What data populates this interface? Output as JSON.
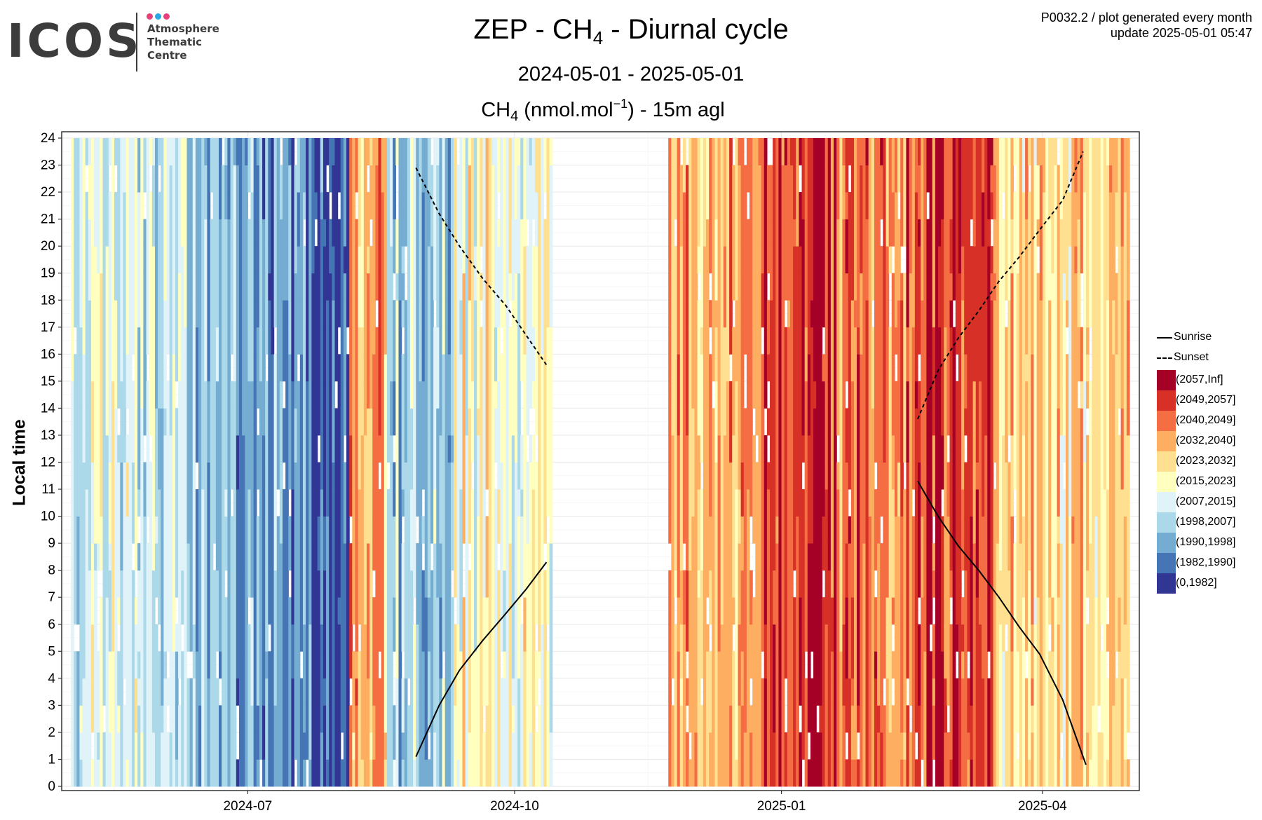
{
  "logo": {
    "text": "ICOS",
    "subtitle_lines": [
      "Atmosphere",
      "Thematic",
      "Centre"
    ],
    "dot_colors": [
      "#e8407a",
      "#29a6e6",
      "#e8407a"
    ]
  },
  "header": {
    "meta_line1": "P0032.2 / plot generated every month",
    "meta_line2": "update  2025-05-01 05:47",
    "title_prefix": "ZEP - CH",
    "title_sub": "4",
    "title_suffix": " - Diurnal cycle",
    "subtitle": "2024-05-01 - 2025-05-01",
    "unit_prefix": "CH",
    "unit_sub": "4",
    "unit_mid": " (nmol.mol",
    "unit_sup": "−1",
    "unit_suffix": ") - 15m agl"
  },
  "chart_data": {
    "type": "heatmap",
    "ylabel": "Local time",
    "xlabel": "",
    "x_start": "2024-05-01",
    "x_end": "2025-05-01",
    "x_ticks": [
      "2024-07",
      "2024-10",
      "2025-01",
      "2025-04"
    ],
    "y_ticks": [
      "0",
      "1",
      "2",
      "3",
      "4",
      "5",
      "6",
      "7",
      "8",
      "9",
      "10",
      "11",
      "12",
      "13",
      "14",
      "15",
      "16",
      "17",
      "18",
      "19",
      "20",
      "21",
      "22",
      "23",
      "24"
    ],
    "ylim": [
      0,
      24
    ],
    "bins": [
      {
        "label": "(2057,Inf]",
        "color": "#a50026"
      },
      {
        "label": "(2049,2057]",
        "color": "#d73027"
      },
      {
        "label": "(2040,2049]",
        "color": "#f46d43"
      },
      {
        "label": "(2032,2040]",
        "color": "#fdae61"
      },
      {
        "label": "(2023,2032]",
        "color": "#fee090"
      },
      {
        "label": "(2015,2023]",
        "color": "#ffffbf"
      },
      {
        "label": "(2007,2015]",
        "color": "#e0f3f8"
      },
      {
        "label": "(1998,2007]",
        "color": "#abd9e9"
      },
      {
        "label": "(1990,1998]",
        "color": "#74add1"
      },
      {
        "label": "(1982,1990]",
        "color": "#4575b4"
      },
      {
        "label": "(0,1982]",
        "color": "#313695"
      }
    ],
    "data_periods": [
      {
        "start": "2024-05-01",
        "end": "2024-10-14"
      },
      {
        "start": "2024-11-23",
        "end": "2025-05-01"
      }
    ],
    "daily_level_profile": [
      {
        "from": "2024-05-01",
        "to": "2024-06-01",
        "bin": "(2007,2015]"
      },
      {
        "from": "2024-06-01",
        "to": "2024-06-20",
        "bin": "(1998,2007]"
      },
      {
        "from": "2024-06-20",
        "to": "2024-07-15",
        "bin": "(1990,1998]"
      },
      {
        "from": "2024-07-15",
        "to": "2024-08-05",
        "bin": "(1982,1990]"
      },
      {
        "from": "2024-08-05",
        "to": "2024-08-18",
        "bin": "(2032,2040]"
      },
      {
        "from": "2024-08-18",
        "to": "2024-09-10",
        "bin": "(1998,2007]"
      },
      {
        "from": "2024-09-10",
        "to": "2024-10-14",
        "bin": "(2015,2023]"
      },
      {
        "from": "2024-11-23",
        "to": "2024-12-25",
        "bin": "(2032,2040]"
      },
      {
        "from": "2024-12-25",
        "to": "2025-01-20",
        "bin": "(2049,2057]"
      },
      {
        "from": "2025-01-20",
        "to": "2025-02-15",
        "bin": "(2040,2049]"
      },
      {
        "from": "2025-02-15",
        "to": "2025-03-15",
        "bin": "(2049,2057]"
      },
      {
        "from": "2025-03-15",
        "to": "2025-05-01",
        "bin": "(2023,2032]"
      }
    ],
    "series": [
      {
        "name": "Sunrise",
        "style": "solid",
        "segments": [
          {
            "x": [
              "2024-08-28",
              "2024-09-05",
              "2024-09-12",
              "2024-09-20",
              "2024-09-28",
              "2024-10-05",
              "2024-10-12"
            ],
            "y": [
              1.1,
              3.0,
              4.3,
              5.4,
              6.4,
              7.3,
              8.3
            ]
          },
          {
            "x": [
              "2025-02-17",
              "2025-02-24",
              "2025-03-03",
              "2025-03-10",
              "2025-03-17",
              "2025-03-24",
              "2025-03-31",
              "2025-04-08",
              "2025-04-16"
            ],
            "y": [
              11.3,
              10.0,
              8.9,
              8.0,
              7.0,
              5.9,
              4.9,
              3.2,
              0.8
            ]
          }
        ]
      },
      {
        "name": "Sunset",
        "style": "dashed",
        "segments": [
          {
            "x": [
              "2024-08-28",
              "2024-09-05",
              "2024-09-12",
              "2024-09-20",
              "2024-09-28",
              "2024-10-05",
              "2024-10-12"
            ],
            "y": [
              22.9,
              21.2,
              20.0,
              18.8,
              17.8,
              16.7,
              15.6
            ]
          },
          {
            "x": [
              "2025-02-17",
              "2025-02-24",
              "2025-03-03",
              "2025-03-10",
              "2025-03-17",
              "2025-03-24",
              "2025-03-31",
              "2025-04-08",
              "2025-04-15"
            ],
            "y": [
              13.6,
              15.4,
              16.6,
              17.6,
              18.7,
              19.6,
              20.6,
              21.7,
              23.5
            ]
          }
        ]
      }
    ],
    "legend_position": "right",
    "grid": true
  }
}
